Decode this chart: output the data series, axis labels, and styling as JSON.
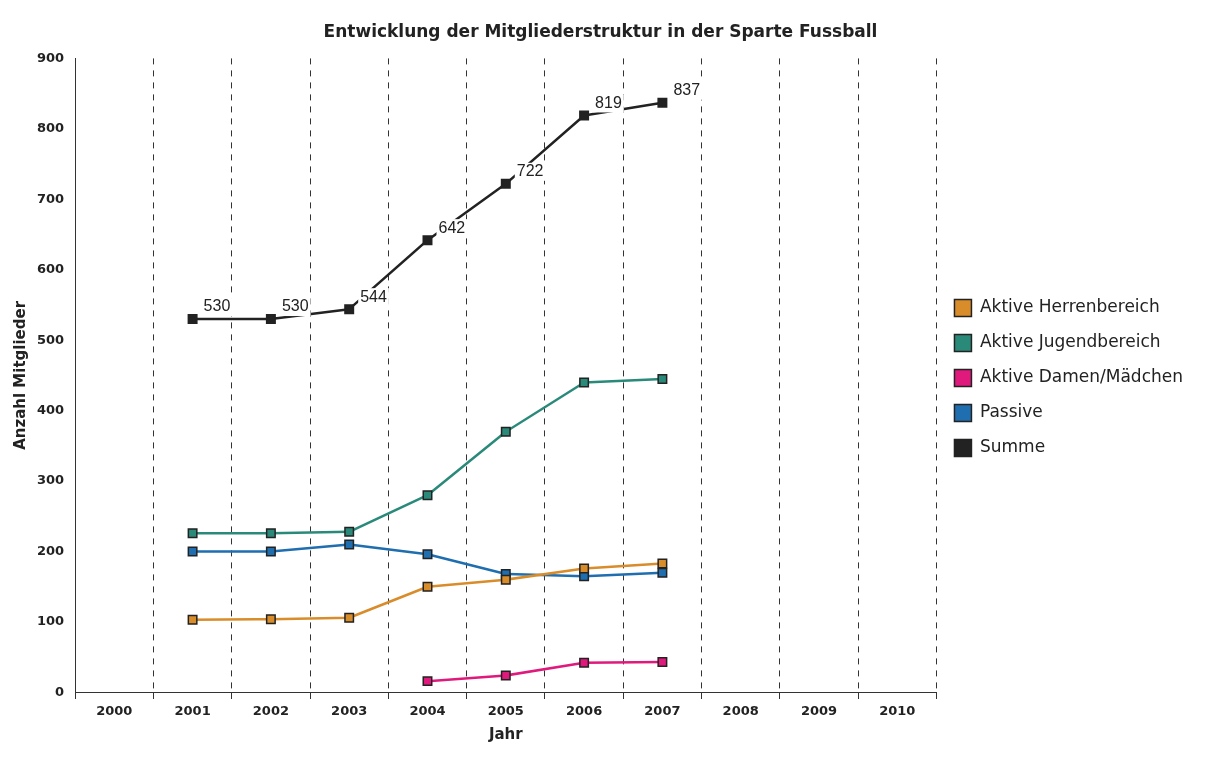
{
  "chart_data": {
    "type": "line",
    "title": "Entwicklung der Mitgliederstruktur in der Sparte Fussball",
    "xlabel": "Jahr",
    "ylabel": "Anzahl Mitglieder",
    "categories": [
      "2000",
      "2001",
      "2002",
      "2003",
      "2004",
      "2005",
      "2006",
      "2007",
      "2008",
      "2009",
      "2010"
    ],
    "series": [
      {
        "name": "Aktive Herrenbereich",
        "color": "#d98c2a",
        "values": [
          null,
          103,
          104,
          106,
          150,
          160,
          176,
          183,
          null,
          null,
          null
        ]
      },
      {
        "name": "Aktive Jugendbereich",
        "color": "#2a8a7a",
        "values": [
          null,
          226,
          226,
          228,
          280,
          370,
          440,
          445,
          null,
          null,
          null
        ]
      },
      {
        "name": "Aktive Damen/Mädchen",
        "color": "#e0197d",
        "values": [
          null,
          null,
          null,
          null,
          16,
          24,
          42,
          43,
          null,
          null,
          null
        ]
      },
      {
        "name": "Passive",
        "color": "#1f6eb0",
        "values": [
          null,
          200,
          200,
          210,
          196,
          168,
          165,
          170,
          null,
          null,
          null
        ]
      },
      {
        "name": "Summe",
        "color": "#222222",
        "values": [
          null,
          530,
          530,
          544,
          642,
          722,
          819,
          837,
          null,
          null,
          null
        ],
        "value_labels": [
          null,
          "530",
          "530",
          "544",
          "642",
          "722",
          "819",
          "837",
          null,
          null,
          null
        ]
      }
    ],
    "ylim": [
      0,
      900
    ],
    "yticks": [
      0,
      100,
      200,
      300,
      400,
      500,
      600,
      700,
      800,
      900
    ],
    "grid": "x",
    "legend": "right",
    "marker": "square",
    "line_style": "solid"
  }
}
